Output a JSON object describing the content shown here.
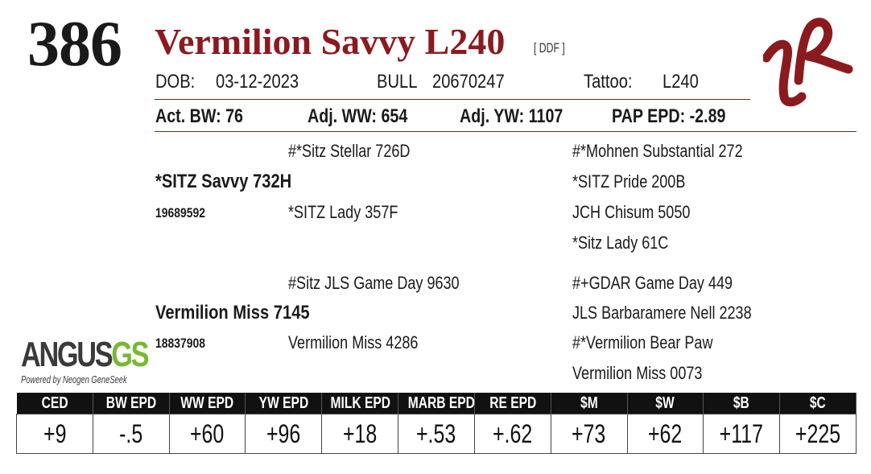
{
  "lot_number": "386",
  "animal_name": "Vermilion Savvy L240",
  "tag": "[ DDF ]",
  "header": {
    "dob_label": "DOB:",
    "dob": "03-12-2023",
    "sex": "BULL",
    "reg_number": "20670247",
    "tattoo_label": "Tattoo:",
    "tattoo": "L240"
  },
  "measures": {
    "act_bw": "Act. BW: 76",
    "adj_ww": "Adj. WW: 654",
    "adj_yw": "Adj. YW: 1107",
    "pap_epd": "PAP EPD: -2.89"
  },
  "pedigree": {
    "sire": {
      "name": "*SITZ Savvy 732H",
      "reg": "19689592"
    },
    "sire_sire": "#*Sitz Stellar 726D",
    "sire_dam": "*SITZ Lady 357F",
    "sss": "#*Mohnen Substantial 272",
    "ssd": "*SITZ Pride 200B",
    "sds": "JCH Chisum 5050",
    "sdd": "*Sitz Lady 61C",
    "dam": {
      "name": "Vermilion Miss 7145",
      "reg": "18837908"
    },
    "dam_sire": "#Sitz JLS Game Day 9630",
    "dam_dam": "Vermilion Miss 4286",
    "dss": "#+GDAR Game Day 449",
    "dsd": "JLS Barbaramere Nell 2238",
    "dds": "#*Vermilion Bear Paw",
    "ddd": "Vermilion Miss 0073"
  },
  "brand_logo": {
    "name": "angus-genomic-logo",
    "main": "ANGUS",
    "accent": "GS",
    "sub": "Powered by Neogen GeneSeek"
  },
  "ranch_brand_icon": "vr-brand-icon",
  "epd_table": {
    "headers": [
      "CED",
      "BW EPD",
      "WW EPD",
      "YW EPD",
      "MILK EPD",
      "MARB EPD",
      "RE EPD",
      "$M",
      "$W",
      "$B",
      "$C"
    ],
    "values": [
      "+9",
      "-.5",
      "+60",
      "+96",
      "+18",
      "+.53",
      "+.62",
      "+73",
      "+62",
      "+117",
      "+225"
    ]
  },
  "colors": {
    "accent": "#8b1a1f",
    "angus_green": "#78b833",
    "header_bg": "#111111"
  }
}
